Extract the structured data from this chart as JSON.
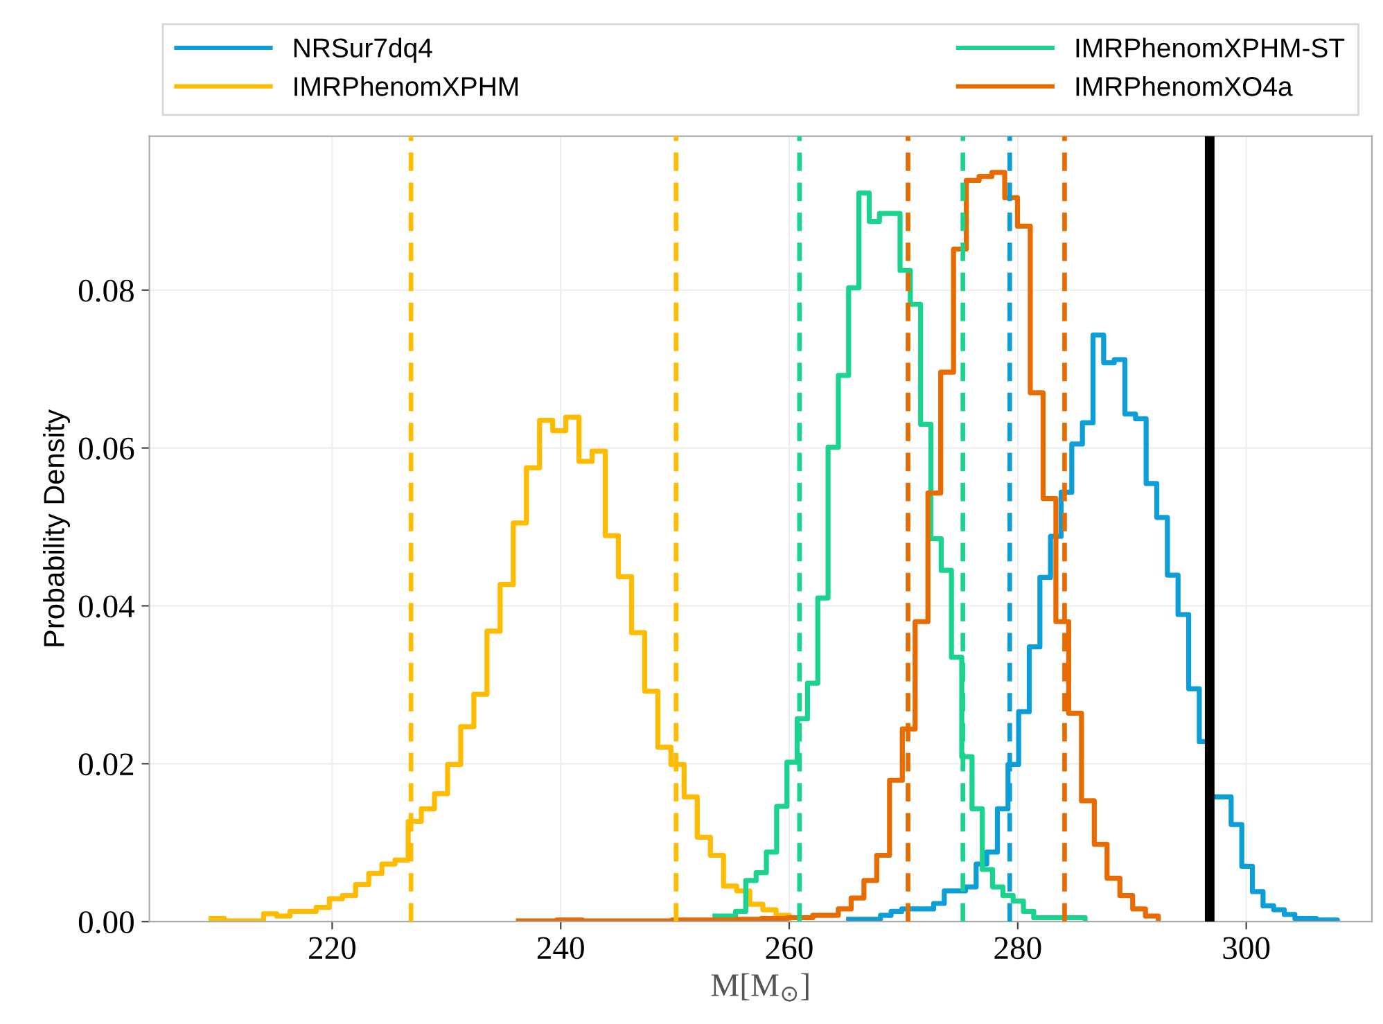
{
  "chart_data": {
    "type": "step",
    "xlabel": "M[M$_{⊙}$]",
    "ylabel": "Probability Density",
    "xlim": [
      204,
      311
    ],
    "ylim": [
      0,
      0.0995
    ],
    "xticks": [
      220,
      240,
      260,
      280,
      300
    ],
    "yticks": [
      {
        "value": 0,
        "label": "0.00"
      },
      {
        "value": 0.02,
        "label": "0.02"
      },
      {
        "value": 0.04,
        "label": "0.04"
      },
      {
        "value": 0.06,
        "label": "0.06"
      },
      {
        "value": 0.08,
        "label": "0.08"
      }
    ],
    "grid": true,
    "legend": "top",
    "line_style": "solid",
    "marker": "none",
    "series": [
      {
        "name": "NRSur7dq4",
        "color": "#0d9ed8",
        "x": [
          265.2,
          266.13,
          267.06,
          267.99,
          268.92,
          269.85,
          270.78,
          271.71,
          272.64,
          273.57,
          274.5,
          275.43,
          276.36,
          277.29,
          278.22,
          279.15,
          280.08,
          281.01,
          281.94,
          282.87,
          283.8,
          284.73,
          285.66,
          286.59,
          287.52,
          288.45,
          289.38,
          290.31,
          291.24,
          292.17,
          293.1,
          294.03,
          294.96,
          295.89,
          296.82,
          297.75,
          298.68,
          299.61,
          300.54,
          301.47,
          302.4,
          303.33,
          304.26,
          305.19,
          306.12,
          307.05,
          307.98
        ],
        "values": [
          0.0003,
          0.0003,
          0.0003,
          0.0008,
          0.0013,
          0.0016,
          0.0016,
          0.0016,
          0.0023,
          0.0039,
          0.0039,
          0.0044,
          0.0073,
          0.0088,
          0.0143,
          0.0199,
          0.0266,
          0.0348,
          0.0436,
          0.0488,
          0.0544,
          0.0605,
          0.0632,
          0.0743,
          0.0708,
          0.0712,
          0.0643,
          0.0637,
          0.0555,
          0.0512,
          0.0439,
          0.0389,
          0.0295,
          0.0228,
          0.0158,
          0.0158,
          0.0123,
          0.007,
          0.0038,
          0.002,
          0.0015,
          0.0009,
          0.0004,
          0.0004,
          0.0002,
          0.0002,
          0
        ]
      },
      {
        "name": "IMRPhenomXPHM",
        "color": "#ffbb00",
        "x": [
          209.4,
          210.55,
          211.7,
          212.85,
          214.0,
          215.15,
          216.3,
          217.45,
          218.6,
          219.75,
          220.9,
          222.05,
          223.2,
          224.35,
          225.5,
          226.65,
          227.8,
          228.95,
          230.1,
          231.25,
          232.4,
          233.55,
          234.7,
          235.85,
          237.0,
          238.15,
          239.3,
          240.45,
          241.6,
          242.75,
          243.9,
          245.05,
          246.2,
          247.35,
          248.5,
          249.65,
          250.8,
          251.95,
          253.1,
          254.25,
          255.4,
          256.55,
          257.7,
          258.85,
          260.0
        ],
        "values": [
          0.0004,
          0.0001,
          0.0001,
          0.0001,
          0.001,
          0.0007,
          0.0013,
          0.0013,
          0.0018,
          0.0029,
          0.0033,
          0.0047,
          0.0061,
          0.0073,
          0.0078,
          0.0127,
          0.0143,
          0.0162,
          0.0199,
          0.0247,
          0.0288,
          0.0368,
          0.0427,
          0.0505,
          0.0575,
          0.0635,
          0.0622,
          0.0639,
          0.0583,
          0.0596,
          0.0489,
          0.0437,
          0.0366,
          0.0292,
          0.0221,
          0.0199,
          0.0158,
          0.0107,
          0.0084,
          0.0045,
          0.0039,
          0.0022,
          0.0015,
          0.0008,
          0
        ]
      },
      {
        "name": "IMRPhenomXPHM-ST",
        "color": "#19d38f",
        "x": [
          253.5,
          254.4,
          255.3,
          256.2,
          257.1,
          258.0,
          258.9,
          259.8,
          260.7,
          261.6,
          262.5,
          263.4,
          264.3,
          265.2,
          266.1,
          267.0,
          267.9,
          268.8,
          269.7,
          270.6,
          271.5,
          272.4,
          273.3,
          274.2,
          275.1,
          276.0,
          276.9,
          277.8,
          278.7,
          279.6,
          280.5,
          281.4,
          282.3,
          283.2,
          284.1,
          285.0,
          285.9
        ],
        "values": [
          0.0007,
          0.0007,
          0.0013,
          0.0052,
          0.0062,
          0.0088,
          0.0146,
          0.0202,
          0.0257,
          0.0302,
          0.041,
          0.0601,
          0.0692,
          0.0803,
          0.0923,
          0.0887,
          0.0897,
          0.0897,
          0.0825,
          0.0782,
          0.063,
          0.0485,
          0.0445,
          0.0335,
          0.0209,
          0.0143,
          0.0066,
          0.0044,
          0.0033,
          0.0026,
          0.0013,
          0.0005,
          0.0005,
          0.0005,
          0.0005,
          0.0005,
          0
        ]
      },
      {
        "name": "IMRPhenomXO4a",
        "color": "#e86b00",
        "x": [
          236.3,
          237.42,
          238.54,
          239.66,
          240.78,
          241.9,
          243.02,
          244.14,
          245.26,
          246.38,
          247.5,
          248.62,
          249.74,
          250.86,
          251.98,
          253.1,
          254.22,
          255.34,
          256.46,
          257.58,
          258.7,
          259.82,
          260.94,
          262.06,
          263.18,
          264.3,
          265.42,
          266.54,
          267.66,
          268.78,
          269.9,
          271.02,
          272.14,
          273.26,
          274.38,
          275.5,
          276.62,
          277.74,
          278.86,
          279.98,
          281.1,
          282.22,
          283.34,
          284.46,
          285.58,
          286.7,
          287.82,
          288.94,
          290.06,
          291.18,
          292.3
        ],
        "values": [
          0.0001,
          0.0001,
          0.0001,
          0.0002,
          0.0002,
          0.0001,
          0.0001,
          0.0001,
          0.0001,
          0.0001,
          0.0001,
          0.0001,
          0.0002,
          0.0002,
          0.0002,
          0.0002,
          0.0002,
          0.0003,
          0.0003,
          0.0004,
          0.0004,
          0.0005,
          0.0005,
          0.0008,
          0.0008,
          0.0016,
          0.003,
          0.0052,
          0.0084,
          0.0179,
          0.0244,
          0.038,
          0.0543,
          0.0696,
          0.0852,
          0.0939,
          0.0944,
          0.0949,
          0.0917,
          0.0881,
          0.067,
          0.0536,
          0.038,
          0.0264,
          0.0153,
          0.0098,
          0.0055,
          0.0033,
          0.0016,
          0.0007,
          0
        ]
      }
    ],
    "ref_lines": [
      {
        "axis": "x",
        "value": 226.9,
        "color": "#ffbb00",
        "line_style": "dashed"
      },
      {
        "axis": "x",
        "value": 250.1,
        "color": "#ffbb00",
        "line_style": "dashed"
      },
      {
        "axis": "x",
        "value": 260.9,
        "color": "#19d38f",
        "line_style": "dashed"
      },
      {
        "axis": "x",
        "value": 275.2,
        "color": "#19d38f",
        "line_style": "dashed"
      },
      {
        "axis": "x",
        "value": 270.4,
        "color": "#e86b00",
        "line_style": "dashed"
      },
      {
        "axis": "x",
        "value": 284.1,
        "color": "#e86b00",
        "line_style": "dashed"
      },
      {
        "axis": "x",
        "value": 279.3,
        "color": "#0d9ed8",
        "line_style": "dashed"
      },
      {
        "axis": "x",
        "value": 296.8,
        "color": "#000000",
        "line_style": "solid"
      }
    ]
  }
}
